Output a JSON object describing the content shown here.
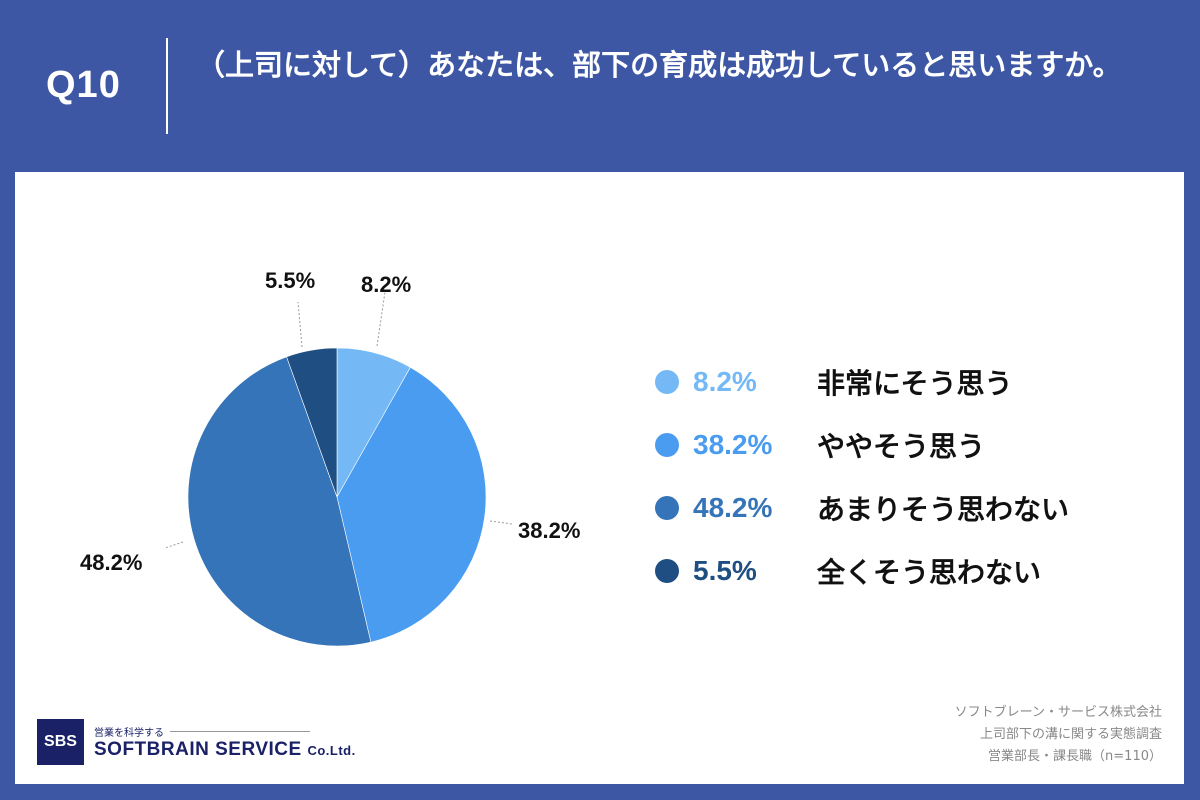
{
  "header": {
    "question_number": "Q10",
    "title": "（上司に対して）あなたは、部下の育成は成功していると思いますか。"
  },
  "chart_data": {
    "type": "pie",
    "title": "（上司に対して）あなたは、部下の育成は成功していると思いますか。",
    "categories": [
      "非常にそう思う",
      "ややそう思う",
      "あまりそう思わない",
      "全くそう思わない"
    ],
    "values": [
      8.2,
      38.2,
      48.2,
      5.5
    ],
    "unit": "%",
    "colors": [
      "#74b9f5",
      "#4a9cf0",
      "#3574b8",
      "#1f4e82"
    ],
    "start_angle": "12 o'clock, clockwise",
    "legend_position": "right"
  },
  "slice_labels": [
    "8.2%",
    "38.2%",
    "48.2%",
    "5.5%"
  ],
  "legend": {
    "items": [
      {
        "pct": "8.2%",
        "label": "非常にそう思う",
        "color": "#74b9f5"
      },
      {
        "pct": "38.2%",
        "label": "ややそう思う",
        "color": "#4a9cf0"
      },
      {
        "pct": "48.2%",
        "label": "あまりそう思わない",
        "color": "#3574b8"
      },
      {
        "pct": "5.5%",
        "label": "全くそう思わない",
        "color": "#1f4e82"
      }
    ]
  },
  "footer": {
    "logo_mark": "SBS",
    "logo_tagline": "営業を科学する",
    "logo_name": "SOFTBRAIN  SERVICE",
    "logo_suffix": "Co.Ltd.",
    "source_lines": [
      "ソフトブレーン・サービス株式会社",
      "上司部下の溝に関する実態調査",
      "営業部長・課長職（n=110）"
    ]
  }
}
